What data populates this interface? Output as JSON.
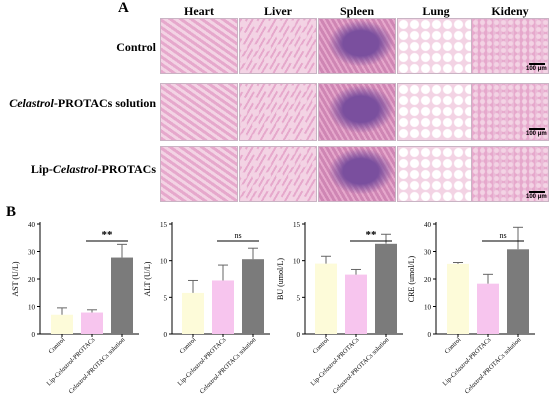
{
  "panel_a": {
    "label": "A",
    "columns": [
      "Heart",
      "Liver",
      "Spleen",
      "Lung",
      "Kideny"
    ],
    "rows": [
      {
        "prefix": "",
        "italic": "",
        "suffix": "Control"
      },
      {
        "prefix": "",
        "italic": "Celastrol",
        "suffix": "-PROTACs solution"
      },
      {
        "prefix": "Lip-",
        "italic": "Celastrol",
        "suffix": "-PROTACs"
      }
    ],
    "scale_label": "100 μm",
    "colors": {
      "tissue_pink": "#e6a8cc",
      "tissue_light": "#f3d3e4",
      "nuclei_purple": "#7a4f9e",
      "background_white": "#ffffff"
    }
  },
  "panel_b": {
    "label": "B"
  },
  "significance_colors": {
    "control": "#fdfbd9",
    "lip": "#f7c5ee",
    "solution": "#7b7b7b",
    "error_bar": "#666666"
  },
  "chart_data": [
    {
      "type": "bar",
      "categories": [
        "Control",
        "Lip-Celastrol-PROTACs",
        "Celastrol-PROTACs solution"
      ],
      "category_parts": [
        {
          "prefix": "Control",
          "italic": "",
          "suffix": ""
        },
        {
          "prefix": "Lip-",
          "italic": "Celastrol",
          "suffix": "-PROTACs"
        },
        {
          "prefix": "",
          "italic": "Celastrol",
          "suffix": "-PROTACs solution"
        }
      ],
      "values": [
        7.0,
        7.8,
        27.8
      ],
      "errors": [
        2.5,
        1.0,
        4.8
      ],
      "ylabel": "AST (U/L)",
      "ylim": [
        0,
        40
      ],
      "yticks": [
        0,
        10,
        20,
        30,
        40
      ],
      "significance": {
        "label": "**",
        "between": [
          1,
          2
        ]
      }
    },
    {
      "type": "bar",
      "categories": [
        "Control",
        "Lip-Celastrol-PROTACs",
        "Celastrol-PROTACs solution"
      ],
      "category_parts": [
        {
          "prefix": "Control",
          "italic": "",
          "suffix": ""
        },
        {
          "prefix": "Lip-",
          "italic": "Celastrol",
          "suffix": "-PROTACs"
        },
        {
          "prefix": "",
          "italic": "Celastrol",
          "suffix": "-PROTACs solution"
        }
      ],
      "values": [
        5.6,
        7.3,
        10.2
      ],
      "errors": [
        1.7,
        2.1,
        1.5
      ],
      "ylabel": "ALT (U/L)",
      "ylim": [
        0,
        15
      ],
      "yticks": [
        0,
        5,
        10,
        15
      ],
      "significance": {
        "label": "ns",
        "between": [
          1,
          2
        ]
      }
    },
    {
      "type": "bar",
      "categories": [
        "Control",
        "Lip-Celastrol-PROTACs",
        "Celastrol-PROTACs solution"
      ],
      "category_parts": [
        {
          "prefix": "Control",
          "italic": "",
          "suffix": ""
        },
        {
          "prefix": "Lip-",
          "italic": "Celastrol",
          "suffix": "-PROTACs"
        },
        {
          "prefix": "",
          "italic": "Celastrol",
          "suffix": "-PROTACs solution"
        }
      ],
      "values": [
        9.6,
        8.1,
        12.3
      ],
      "errors": [
        1.0,
        0.7,
        1.3
      ],
      "ylabel": "BU (umol/L)",
      "ylim": [
        0,
        15
      ],
      "yticks": [
        0,
        5,
        10,
        15
      ],
      "significance": {
        "label": "**",
        "between": [
          1,
          2
        ]
      }
    },
    {
      "type": "bar",
      "categories": [
        "Control",
        "Lip-Celastrol-PROTACs",
        "Celastrol-PROTACs solution"
      ],
      "category_parts": [
        {
          "prefix": "Control",
          "italic": "",
          "suffix": ""
        },
        {
          "prefix": "Lip-",
          "italic": "Celastrol",
          "suffix": "-PROTACs"
        },
        {
          "prefix": "",
          "italic": "Celastrol",
          "suffix": "-PROTACs solution"
        }
      ],
      "values": [
        25.5,
        18.3,
        30.8
      ],
      "errors": [
        0.5,
        3.4,
        8.0
      ],
      "ylabel": "CRE (umol/L)",
      "ylim": [
        0,
        40
      ],
      "yticks": [
        0,
        10,
        20,
        30,
        40
      ],
      "significance": {
        "label": "ns",
        "between": [
          1,
          2
        ]
      }
    }
  ]
}
